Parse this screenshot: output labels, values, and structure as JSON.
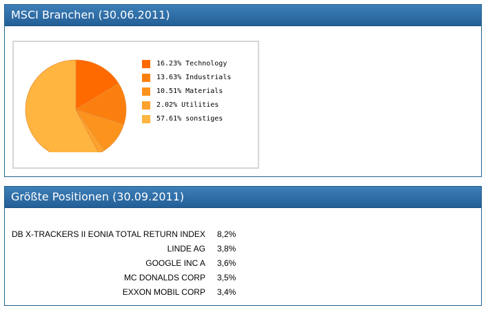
{
  "branchen": {
    "title": "MSCI Branchen (30.06.2011)",
    "chart_data": {
      "type": "pie",
      "slices": [
        {
          "label": "Technology",
          "value": 16.23,
          "display": "16.23% Technology",
          "color": "#ff6a00"
        },
        {
          "label": "Industrials",
          "value": 13.63,
          "display": "13.63% Industrials",
          "color": "#fb7f0e"
        },
        {
          "label": "Materials",
          "value": 10.51,
          "display": "10.51% Materials",
          "color": "#fc931d"
        },
        {
          "label": "Utilities",
          "value": 2.02,
          "display": "2.02% Utilities",
          "color": "#fda22d"
        },
        {
          "label": "sonstiges",
          "value": 57.61,
          "display": "57.61% sonstiges",
          "color": "#ffb53f"
        }
      ]
    }
  },
  "positionen": {
    "title": "Größte Positionen (30.09.2011)",
    "rows": [
      {
        "name": "DB X-TRACKERS II EONIA TOTAL RETURN INDEX",
        "pct": "8,2%"
      },
      {
        "name": "LINDE AG",
        "pct": "3,8%"
      },
      {
        "name": "GOOGLE INC A",
        "pct": "3,6%"
      },
      {
        "name": "MC DONALDS CORP",
        "pct": "3,5%"
      },
      {
        "name": "EXXON MOBIL CORP",
        "pct": "3,4%"
      }
    ]
  }
}
